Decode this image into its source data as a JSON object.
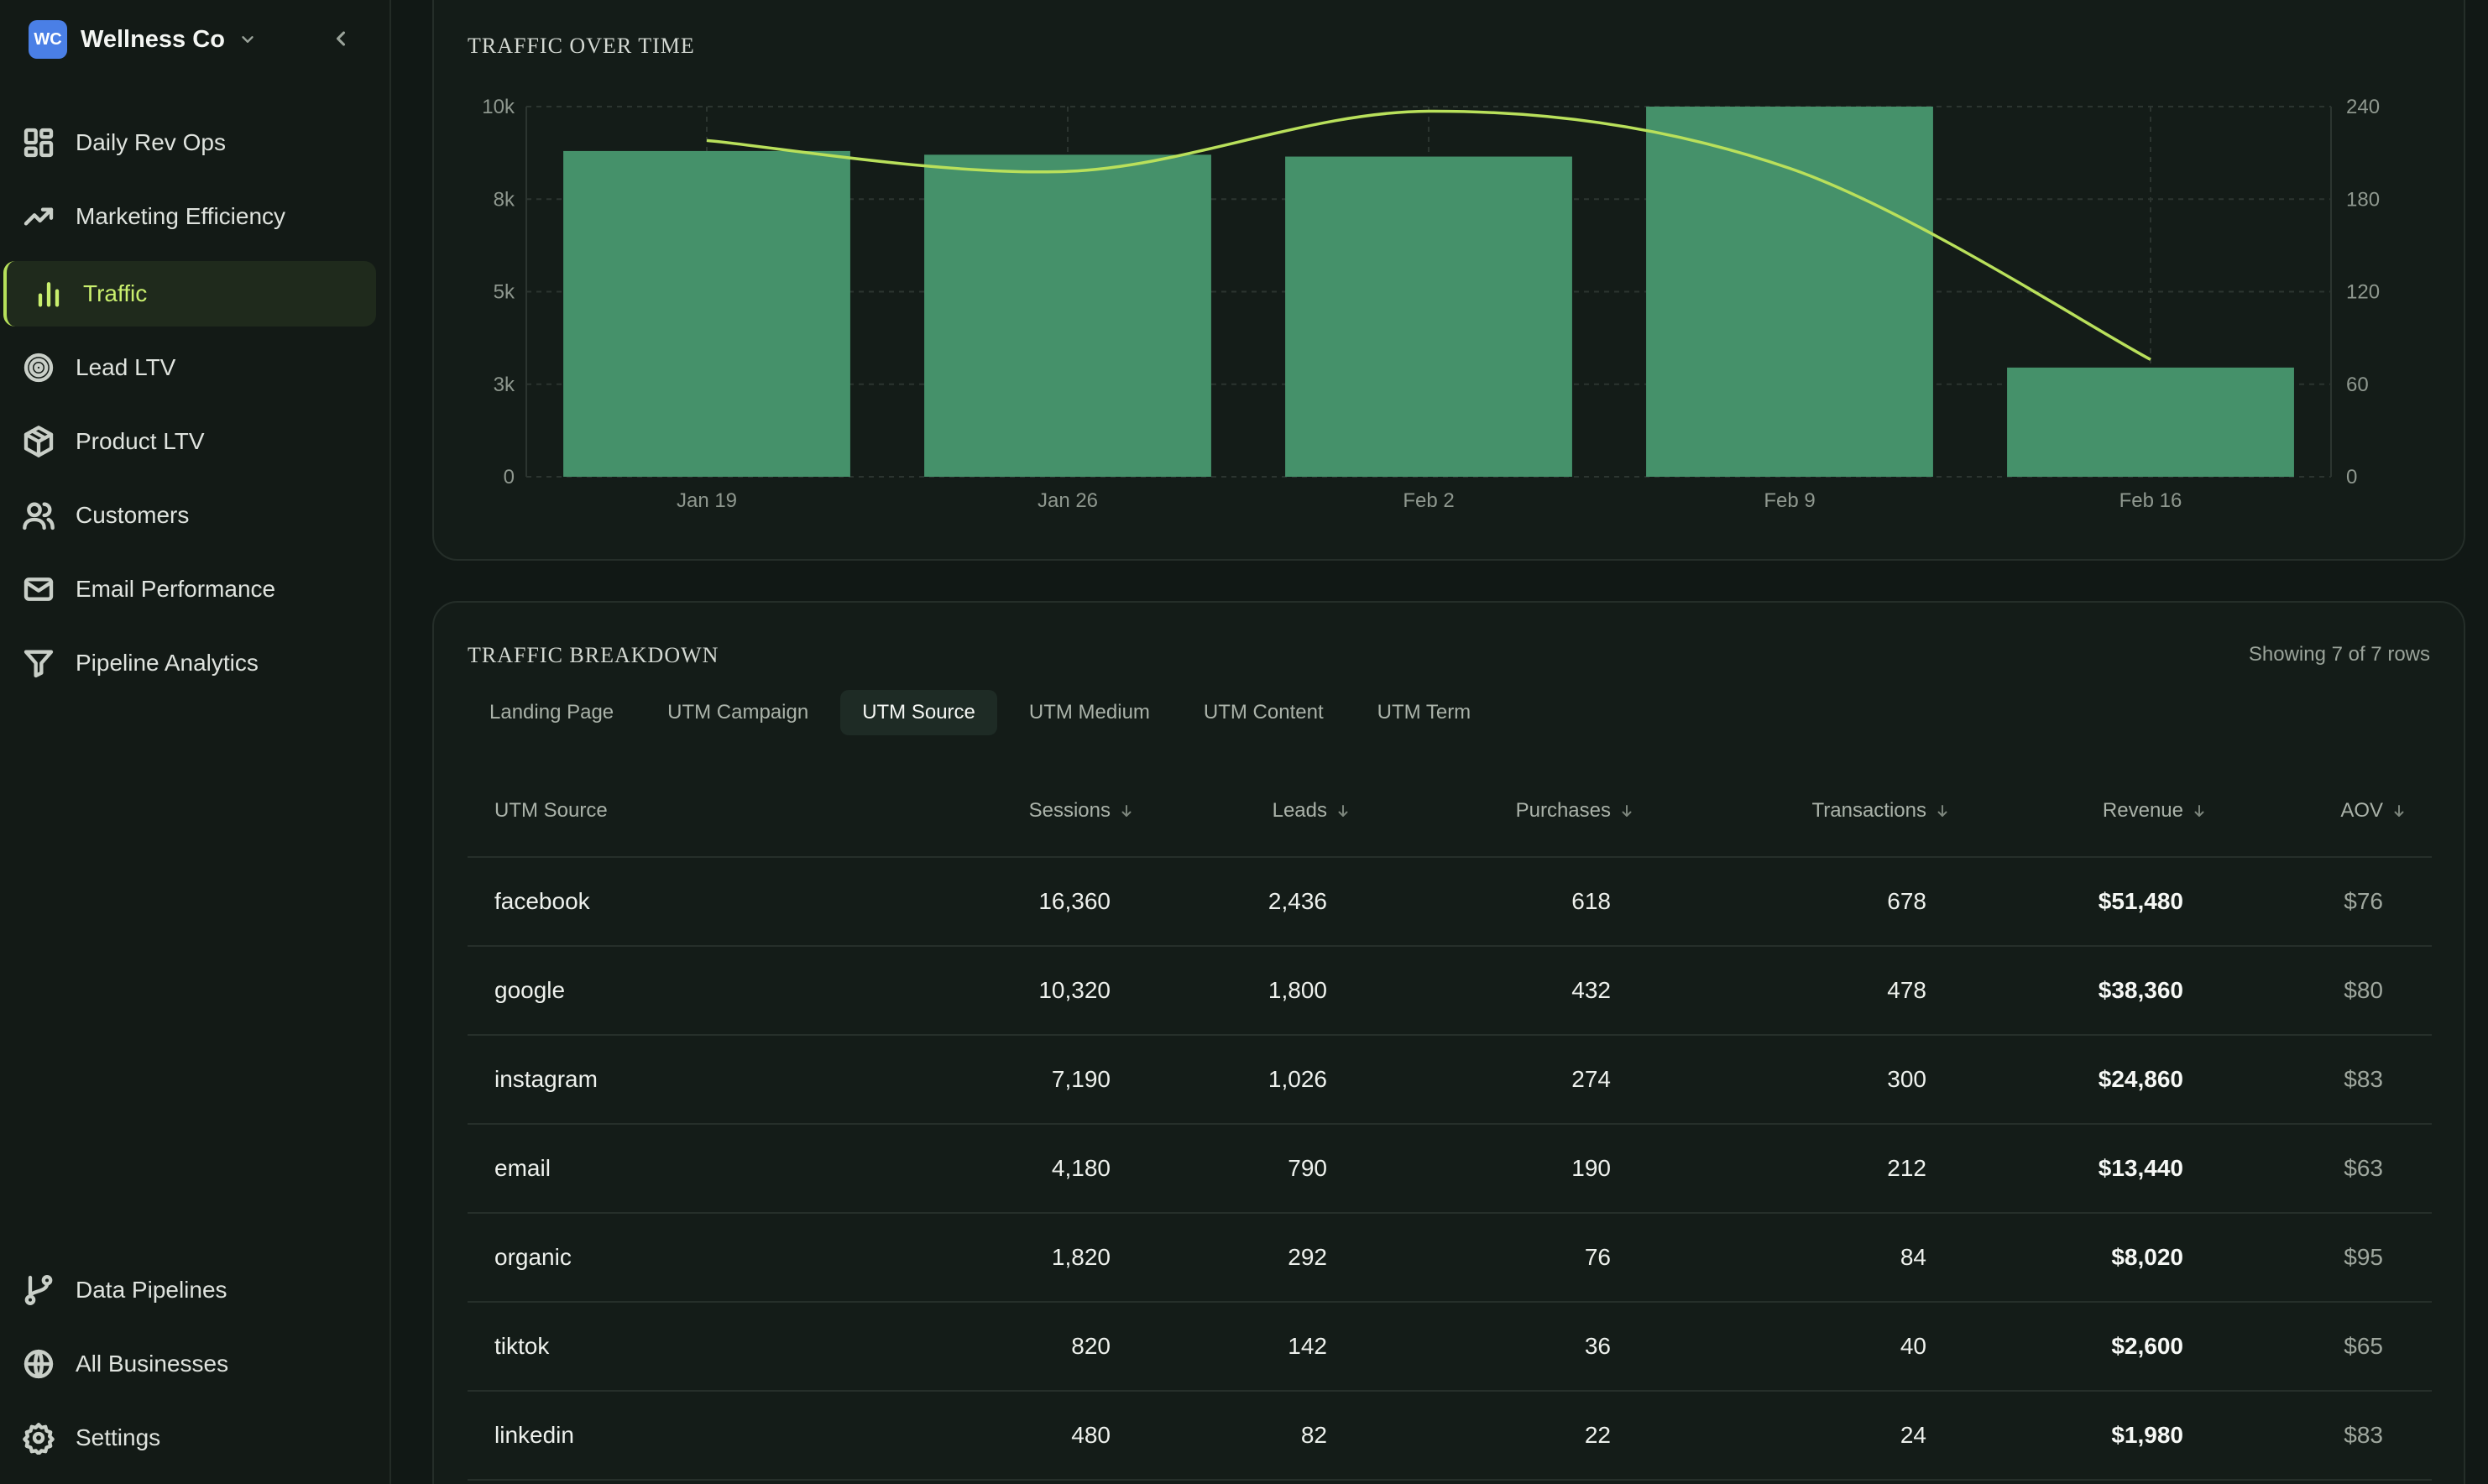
{
  "brand": {
    "initials": "WC",
    "name": "Wellness Co"
  },
  "nav": {
    "items": [
      {
        "label": "Daily Rev Ops",
        "icon": "dashboard-icon"
      },
      {
        "label": "Marketing Efficiency",
        "icon": "trend-up-icon"
      },
      {
        "label": "Traffic",
        "icon": "bar-chart-icon",
        "active": true
      },
      {
        "label": "Lead LTV",
        "icon": "target-icon"
      },
      {
        "label": "Product LTV",
        "icon": "package-icon"
      },
      {
        "label": "Customers",
        "icon": "users-icon"
      },
      {
        "label": "Email Performance",
        "icon": "mail-icon"
      },
      {
        "label": "Pipeline Analytics",
        "icon": "funnel-icon"
      }
    ],
    "bottom_items": [
      {
        "label": "Data Pipelines",
        "icon": "git-branch-icon"
      },
      {
        "label": "All Businesses",
        "icon": "globe-icon"
      },
      {
        "label": "Settings",
        "icon": "gear-icon"
      }
    ]
  },
  "traffic_chart": {
    "title": "Traffic Over Time"
  },
  "chart_data": {
    "type": "bar",
    "categories": [
      "Jan 19",
      "Jan 26",
      "Feb 2",
      "Feb 9",
      "Feb 16"
    ],
    "series": [
      {
        "type": "bar",
        "axis": "left",
        "values": [
          8800,
          8700,
          8650,
          10000,
          2950
        ]
      },
      {
        "type": "line",
        "axis": "right",
        "values": [
          218,
          198,
          237,
          200,
          76
        ]
      }
    ],
    "y_left": {
      "ticks": [
        "0",
        "3k",
        "5k",
        "8k",
        "10k"
      ],
      "ylim": [
        0,
        10000
      ]
    },
    "y_right": {
      "ticks": [
        "0",
        "60",
        "120",
        "180",
        "240"
      ],
      "ylim": [
        0,
        240
      ]
    },
    "grid": true,
    "colors": {
      "bar": "#45916a",
      "line": "#b9e05b"
    }
  },
  "breakdown": {
    "title": "Traffic Breakdown",
    "rows_info": "Showing 7 of 7 rows",
    "tabs": [
      {
        "label": "Landing Page"
      },
      {
        "label": "UTM Campaign"
      },
      {
        "label": "UTM Source",
        "active": true
      },
      {
        "label": "UTM Medium"
      },
      {
        "label": "UTM Content"
      },
      {
        "label": "UTM Term"
      }
    ],
    "columns": [
      "UTM Source",
      "Sessions",
      "Leads",
      "Purchases",
      "Transactions",
      "Revenue",
      "AOV"
    ],
    "rows": [
      [
        "facebook",
        "16,360",
        "2,436",
        "618",
        "678",
        "$51,480",
        "$76"
      ],
      [
        "google",
        "10,320",
        "1,800",
        "432",
        "478",
        "$38,360",
        "$80"
      ],
      [
        "instagram",
        "7,190",
        "1,026",
        "274",
        "300",
        "$24,860",
        "$83"
      ],
      [
        "email",
        "4,180",
        "790",
        "190",
        "212",
        "$13,440",
        "$63"
      ],
      [
        "organic",
        "1,820",
        "292",
        "76",
        "84",
        "$8,020",
        "$95"
      ],
      [
        "tiktok",
        "820",
        "142",
        "36",
        "40",
        "$2,600",
        "$65"
      ],
      [
        "linkedin",
        "480",
        "82",
        "22",
        "24",
        "$1,980",
        "$83"
      ]
    ]
  },
  "colors": {
    "accent": "#c9ef6e",
    "background": "#111815",
    "card": "#141c18"
  }
}
